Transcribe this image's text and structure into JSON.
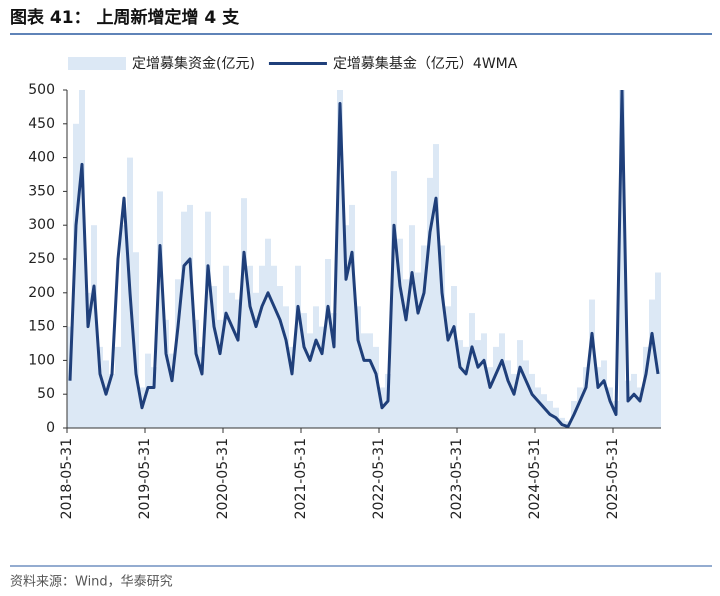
{
  "title": "图表 41：  上周新增定增 4 支",
  "source": "资料来源：Wind，华泰研究",
  "chart_data": {
    "type": "line",
    "categories": [
      "2018-05-31",
      null,
      null,
      null,
      null,
      null,
      null,
      null,
      null,
      null,
      null,
      null,
      null,
      "2019-05-31",
      null,
      null,
      null,
      null,
      null,
      null,
      null,
      null,
      null,
      null,
      null,
      null,
      "2020-05-31",
      null,
      null,
      null,
      null,
      null,
      null,
      null,
      null,
      null,
      null,
      null,
      null,
      "2021-05-31",
      null,
      null,
      null,
      null,
      null,
      null,
      null,
      null,
      null,
      null,
      null,
      null,
      "2022-05-31",
      null,
      null,
      null,
      null,
      null,
      null,
      null,
      null,
      null,
      null,
      null,
      null,
      "2023-05-31",
      null,
      null,
      null,
      null,
      null,
      null,
      null,
      null,
      null,
      null,
      null,
      null,
      "2024-05-31",
      null,
      null,
      null,
      null,
      null,
      null,
      null,
      null,
      null,
      null,
      null,
      null,
      "2025-05-31",
      null,
      null,
      null,
      null,
      null,
      null,
      null
    ],
    "series": [
      {
        "name": "定增募集资金(亿元)",
        "color": "#dce8f5",
        "kind": "area",
        "values": [
          150,
          450,
          500,
          200,
          300,
          120,
          100,
          80,
          120,
          300,
          400,
          260,
          60,
          110,
          90,
          350,
          160,
          110,
          220,
          320,
          330,
          160,
          120,
          320,
          210,
          160,
          240,
          200,
          190,
          340,
          240,
          200,
          240,
          280,
          240,
          210,
          180,
          120,
          240,
          170,
          140,
          180,
          150,
          250,
          170,
          500,
          300,
          330,
          180,
          140,
          140,
          120,
          60,
          80,
          380,
          280,
          220,
          300,
          230,
          270,
          370,
          420,
          270,
          180,
          210,
          130,
          120,
          170,
          130,
          140,
          90,
          120,
          140,
          100,
          80,
          130,
          100,
          80,
          60,
          50,
          40,
          30,
          15,
          10,
          40,
          60,
          90,
          190,
          90,
          100,
          60,
          40,
          500,
          70,
          80,
          60,
          120,
          190,
          230
        ]
      },
      {
        "name": "定增募集基金（亿元）4WMA",
        "color": "#1f3f7a",
        "kind": "line",
        "values": [
          70,
          300,
          390,
          150,
          210,
          80,
          50,
          80,
          250,
          340,
          200,
          80,
          30,
          60,
          60,
          270,
          110,
          70,
          150,
          240,
          250,
          110,
          80,
          240,
          150,
          110,
          170,
          150,
          130,
          260,
          180,
          150,
          180,
          200,
          180,
          160,
          130,
          80,
          180,
          120,
          100,
          130,
          110,
          180,
          120,
          480,
          220,
          260,
          130,
          100,
          100,
          80,
          30,
          40,
          300,
          210,
          160,
          230,
          170,
          200,
          290,
          340,
          200,
          130,
          150,
          90,
          80,
          120,
          90,
          100,
          60,
          80,
          100,
          70,
          50,
          90,
          70,
          50,
          40,
          30,
          20,
          15,
          5,
          2,
          20,
          40,
          60,
          140,
          60,
          70,
          40,
          20,
          500,
          40,
          50,
          40,
          80,
          140,
          80
        ]
      }
    ],
    "ylim": [
      0,
      500
    ],
    "yticks": [
      0,
      50,
      100,
      150,
      200,
      250,
      300,
      350,
      400,
      450,
      500
    ]
  }
}
